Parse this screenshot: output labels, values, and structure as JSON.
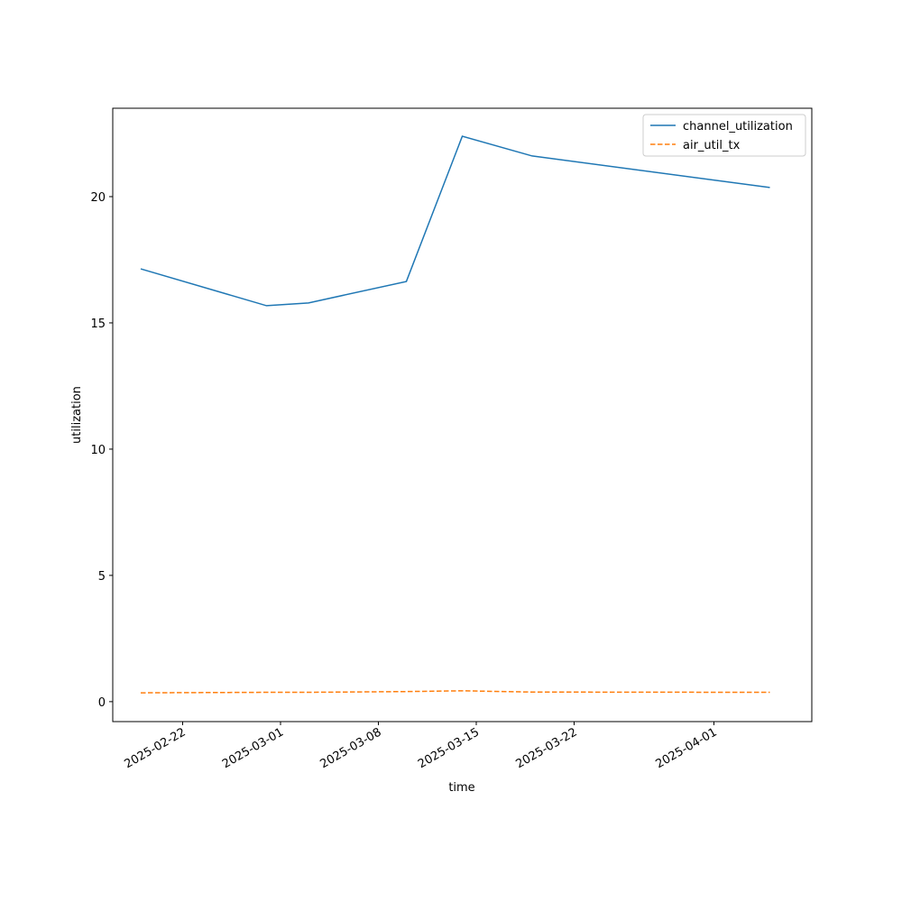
{
  "chart_data": {
    "type": "line",
    "x": [
      "2025-02-19",
      "2025-02-28",
      "2025-03-03",
      "2025-03-10",
      "2025-03-14",
      "2025-03-19",
      "2025-04-05"
    ],
    "series": [
      {
        "name": "channel_utilization",
        "color": "#1f77b4",
        "dash": false,
        "values": [
          17.14,
          15.68,
          15.79,
          16.64,
          22.39,
          21.61,
          20.36
        ]
      },
      {
        "name": "air_util_tx",
        "color": "#ff7f0e",
        "dash": true,
        "values": [
          0.35,
          0.37,
          0.37,
          0.4,
          0.43,
          0.38,
          0.37
        ]
      }
    ],
    "xlabel": "time",
    "ylabel": "utilization",
    "xlim": [
      "2025-02-17",
      "2025-04-08"
    ],
    "xticks": [
      "2025-02-22",
      "2025-03-01",
      "2025-03-08",
      "2025-03-15",
      "2025-03-22",
      "2025-04-01"
    ],
    "ylim": [
      -0.79,
      23.5
    ],
    "yticks": [
      0,
      5,
      10,
      15,
      20
    ],
    "grid": false,
    "legend": "upper right"
  }
}
